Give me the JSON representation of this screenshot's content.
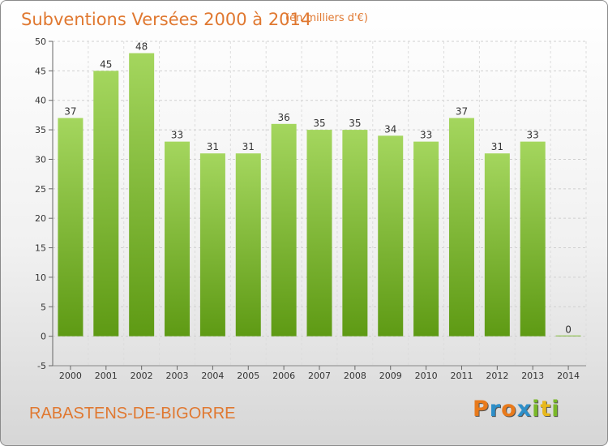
{
  "chart_data": {
    "type": "bar",
    "title": "Subventions Versées 2000 à 2014",
    "subtitle": "(en milliers d'€)",
    "categories": [
      "2000",
      "2001",
      "2002",
      "2003",
      "2004",
      "2005",
      "2006",
      "2007",
      "2008",
      "2009",
      "2010",
      "2011",
      "2012",
      "2013",
      "2014"
    ],
    "values": [
      37,
      45,
      48,
      33,
      31,
      31,
      36,
      35,
      35,
      34,
      33,
      37,
      31,
      33,
      0
    ],
    "ylim": [
      -5,
      50
    ],
    "yticks": [
      -5,
      0,
      5,
      10,
      15,
      20,
      25,
      30,
      35,
      40,
      45,
      50
    ],
    "grid": true,
    "bar_color": "#7fc02e"
  },
  "footer": {
    "place": "RABASTENS-DE-BIGORRE",
    "logo": [
      "P",
      "r",
      "o",
      "x",
      "i",
      "t",
      "i"
    ],
    "logo_colors": [
      "#e87a1c",
      "#2d8fc9",
      "#e87a1c",
      "#2d8fc9",
      "#7ab829",
      "#e8b81c",
      "#7ab829"
    ]
  }
}
